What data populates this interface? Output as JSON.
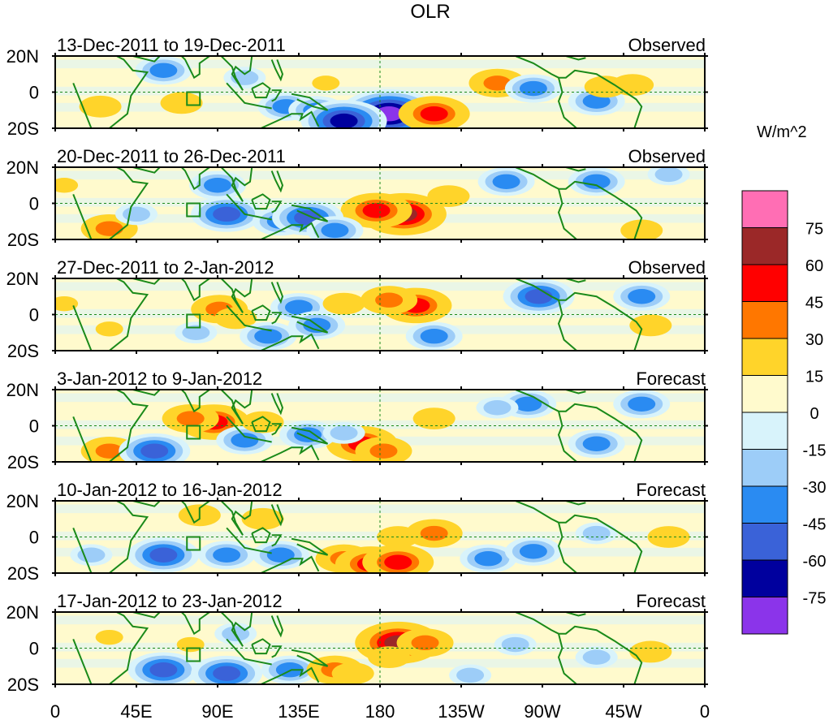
{
  "chart_data": {
    "type": "heatmap",
    "title": "OLR",
    "units": "W/m^2",
    "x_ticks": [
      "0",
      "45E",
      "90E",
      "135E",
      "180",
      "135W",
      "90W",
      "45W",
      "0"
    ],
    "y_ticks": [
      "20N",
      "0",
      "20S"
    ],
    "colorbar": {
      "tick_labels": [
        "75",
        "60",
        "45",
        "30",
        "15",
        "0",
        "-15",
        "-30",
        "-45",
        "-60",
        "-75"
      ],
      "colors": [
        "#ff6eb4",
        "#9b2828",
        "#ff0000",
        "#ff7700",
        "#ffd42a",
        "#fffacd",
        "#d8f3fb",
        "#9dcdf8",
        "#2a8bf2",
        "#3a62d8",
        "#00009e",
        "#8b34ea"
      ]
    },
    "panels": [
      {
        "date_range": "13-Dec-2011 to 19-Dec-2011",
        "label": "Observed",
        "features": [
          [
            150,
            5,
            1
          ],
          [
            245,
            5,
            3
          ],
          [
            185,
            -12,
            -6
          ],
          [
            265,
            2,
            -3
          ],
          [
            70,
            -6,
            2
          ],
          [
            128,
            -8,
            -3
          ],
          [
            145,
            -10,
            -3
          ],
          [
            210,
            -12,
            4
          ],
          [
            300,
            -5,
            -3
          ],
          [
            305,
            3,
            2
          ],
          [
            320,
            4,
            2
          ],
          [
            25,
            -8,
            2
          ],
          [
            60,
            12,
            -3
          ],
          [
            160,
            -16,
            -5
          ],
          [
            105,
            8,
            -2
          ]
        ]
      },
      {
        "date_range": "20-Dec-2011 to 26-Dec-2011",
        "label": "Observed",
        "features": [
          [
            193,
            -6,
            5
          ],
          [
            178,
            -4,
            4
          ],
          [
            218,
            4,
            2
          ],
          [
            95,
            -6,
            -4
          ],
          [
            125,
            -10,
            -3
          ],
          [
            140,
            -8,
            -4
          ],
          [
            155,
            -15,
            -3
          ],
          [
            90,
            10,
            -3
          ],
          [
            250,
            12,
            -3
          ],
          [
            300,
            12,
            -3
          ],
          [
            30,
            -14,
            3
          ],
          [
            45,
            -6,
            -2
          ],
          [
            340,
            16,
            -2
          ],
          [
            325,
            -15,
            2
          ],
          [
            5,
            10,
            1
          ]
        ]
      },
      {
        "date_range": "27-Dec-2011 to 2-Jan-2012",
        "label": "Observed",
        "features": [
          [
            200,
            5,
            4
          ],
          [
            185,
            8,
            3
          ],
          [
            91,
            3,
            3
          ],
          [
            100,
            -2,
            2
          ],
          [
            135,
            4,
            -3
          ],
          [
            145,
            -6,
            -3
          ],
          [
            118,
            -12,
            -3
          ],
          [
            210,
            -12,
            -3
          ],
          [
            268,
            10,
            -4
          ],
          [
            325,
            10,
            -3
          ],
          [
            160,
            6,
            2
          ],
          [
            30,
            -8,
            1
          ],
          [
            78,
            -10,
            -2
          ],
          [
            330,
            -6,
            2
          ],
          [
            5,
            6,
            1
          ]
        ]
      },
      {
        "date_range": "3-Jan-2012 to 9-Jan-2012",
        "label": "Forecast",
        "features": [
          [
            88,
            2,
            4
          ],
          [
            75,
            4,
            3
          ],
          [
            170,
            -10,
            4
          ],
          [
            182,
            -14,
            3
          ],
          [
            140,
            -5,
            -3
          ],
          [
            160,
            -4,
            -2
          ],
          [
            210,
            4,
            2
          ],
          [
            262,
            12,
            -3
          ],
          [
            245,
            10,
            -2
          ],
          [
            300,
            -10,
            -3
          ],
          [
            325,
            12,
            -3
          ],
          [
            30,
            -14,
            3
          ],
          [
            55,
            -14,
            -4
          ],
          [
            105,
            -8,
            -3
          ],
          [
            115,
            2,
            2
          ]
        ]
      },
      {
        "date_range": "10-Jan-2012 to 16-Jan-2012",
        "label": "Forecast",
        "features": [
          [
            160,
            -12,
            3
          ],
          [
            175,
            -15,
            4
          ],
          [
            190,
            -14,
            4
          ],
          [
            210,
            2,
            3
          ],
          [
            190,
            0,
            2
          ],
          [
            80,
            12,
            2
          ],
          [
            60,
            -10,
            -4
          ],
          [
            95,
            -10,
            -3
          ],
          [
            125,
            -10,
            -3
          ],
          [
            240,
            -12,
            -3
          ],
          [
            265,
            -8,
            -3
          ],
          [
            300,
            2,
            -2
          ],
          [
            340,
            0,
            2
          ],
          [
            20,
            -10,
            -2
          ],
          [
            115,
            10,
            2
          ]
        ]
      },
      {
        "date_range": "17-Jan-2012 to 23-Jan-2012",
        "label": "Forecast",
        "features": [
          [
            190,
            3,
            5
          ],
          [
            205,
            3,
            3
          ],
          [
            185,
            -5,
            2
          ],
          [
            60,
            -12,
            -4
          ],
          [
            95,
            -14,
            -4
          ],
          [
            130,
            -12,
            -3
          ],
          [
            155,
            -12,
            3
          ],
          [
            165,
            -14,
            2
          ],
          [
            255,
            2,
            -2
          ],
          [
            100,
            8,
            -2
          ],
          [
            300,
            -5,
            -2
          ],
          [
            330,
            -2,
            2
          ],
          [
            30,
            6,
            1
          ],
          [
            230,
            -15,
            -2
          ],
          [
            75,
            2,
            1
          ]
        ]
      }
    ]
  }
}
